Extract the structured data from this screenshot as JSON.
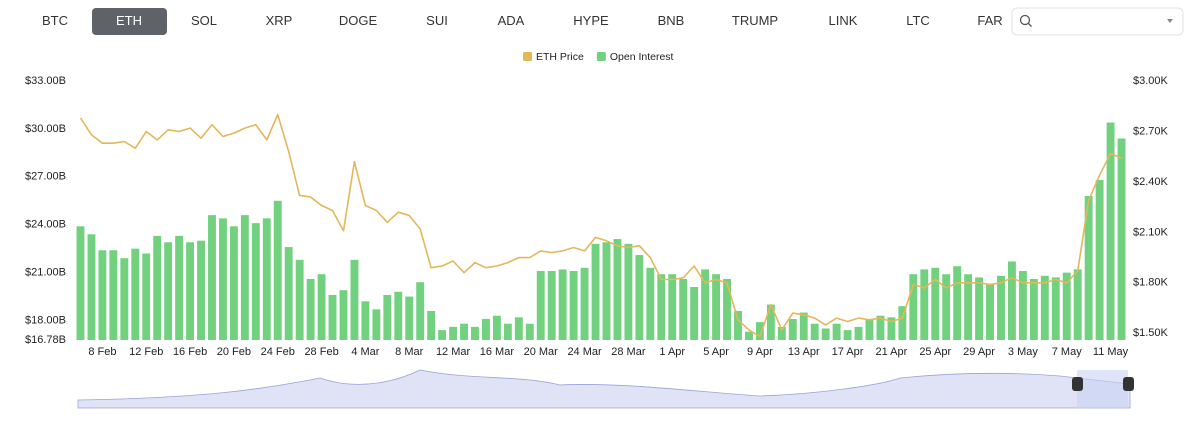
{
  "tabs": [
    "BTC",
    "ETH",
    "SOL",
    "XRP",
    "DOGE",
    "SUI",
    "ADA",
    "HYPE",
    "BNB",
    "TRUMP",
    "LINK",
    "LTC",
    "FAR"
  ],
  "selected_tab": 1,
  "chart_data": {
    "type": "combo",
    "categories": [
      null,
      null,
      "8 Feb",
      null,
      null,
      null,
      "12 Feb",
      null,
      null,
      null,
      "16 Feb",
      null,
      null,
      null,
      "20 Feb",
      null,
      null,
      null,
      "24 Feb",
      null,
      null,
      null,
      "28 Feb",
      null,
      null,
      null,
      "4 Mar",
      null,
      null,
      null,
      "8 Mar",
      null,
      null,
      null,
      "12 Mar",
      null,
      null,
      null,
      "16 Mar",
      null,
      null,
      null,
      "20 Mar",
      null,
      null,
      null,
      "24 Mar",
      null,
      null,
      null,
      "28 Mar",
      null,
      null,
      null,
      "1 Apr",
      null,
      null,
      null,
      "5 Apr",
      null,
      null,
      null,
      "9 Apr",
      null,
      null,
      null,
      "13 Apr",
      null,
      null,
      null,
      "17 Apr",
      null,
      null,
      null,
      "21 Apr",
      null,
      null,
      null,
      "25 Apr",
      null,
      null,
      null,
      "29 Apr",
      null,
      null,
      null,
      "3 May",
      null,
      null,
      null,
      "7 May",
      null,
      null,
      null,
      "11 May",
      null
    ],
    "series": [
      {
        "name": "ETH Price",
        "type": "line",
        "axis": "y2",
        "color": "#e3b75a",
        "values": [
          2.78,
          2.68,
          2.63,
          2.63,
          2.64,
          2.6,
          2.7,
          2.65,
          2.71,
          2.7,
          2.72,
          2.66,
          2.74,
          2.67,
          2.69,
          2.72,
          2.74,
          2.65,
          2.8,
          2.58,
          2.32,
          2.31,
          2.26,
          2.23,
          2.11,
          2.52,
          2.26,
          2.23,
          2.16,
          2.22,
          2.2,
          2.12,
          1.89,
          1.9,
          1.93,
          1.86,
          1.92,
          1.89,
          1.9,
          1.92,
          1.95,
          1.95,
          1.99,
          1.98,
          1.99,
          2.01,
          1.99,
          2.07,
          2.05,
          2.02,
          2.01,
          2.02,
          1.95,
          1.82,
          1.82,
          1.83,
          1.9,
          1.8,
          1.82,
          1.8,
          1.58,
          1.52,
          1.48,
          1.67,
          1.52,
          1.62,
          1.61,
          1.59,
          1.55,
          1.59,
          1.57,
          1.59,
          1.58,
          1.59,
          1.57,
          1.59,
          1.79,
          1.77,
          1.82,
          1.77,
          1.8,
          1.8,
          1.8,
          1.79,
          1.8,
          1.83,
          1.8,
          1.8,
          1.8,
          1.82,
          1.8,
          1.87,
          2.29,
          2.44,
          2.57,
          2.54
        ]
      },
      {
        "name": "Open Interest",
        "type": "bar",
        "color": "#72d17f",
        "values": [
          23.9,
          23.4,
          22.4,
          22.4,
          21.9,
          22.5,
          22.2,
          23.3,
          22.9,
          23.3,
          22.9,
          23.0,
          24.6,
          24.4,
          23.9,
          24.6,
          24.1,
          24.4,
          25.5,
          22.6,
          21.8,
          20.6,
          20.9,
          19.6,
          19.9,
          21.8,
          19.2,
          18.7,
          19.6,
          19.8,
          19.5,
          20.4,
          18.6,
          17.4,
          17.6,
          17.8,
          17.6,
          18.1,
          18.3,
          17.8,
          18.2,
          17.8,
          21.1,
          21.1,
          21.2,
          21.1,
          21.3,
          22.8,
          22.9,
          23.1,
          22.8,
          22.1,
          21.3,
          20.9,
          20.9,
          20.6,
          20.1,
          21.2,
          20.9,
          20.6,
          18.6,
          17.3,
          17.9,
          19.0,
          17.6,
          18.1,
          18.5,
          17.8,
          17.5,
          17.8,
          17.4,
          17.6,
          18.1,
          18.3,
          18.2,
          18.9,
          20.9,
          21.2,
          21.3,
          20.9,
          21.4,
          20.9,
          20.7,
          20.3,
          20.8,
          21.7,
          21.1,
          20.6,
          20.8,
          20.7,
          21.0,
          21.2,
          25.8,
          26.8,
          30.4,
          29.4
        ]
      }
    ],
    "ylim": [
      16.78,
      33.0
    ],
    "yticks": [
      {
        "value": 16.78,
        "label": "$16.78B"
      },
      {
        "value": 18,
        "label": "$18.00B"
      },
      {
        "value": 21,
        "label": "$21.00B"
      },
      {
        "value": 24,
        "label": "$24.00B"
      },
      {
        "value": 27,
        "label": "$27.00B"
      },
      {
        "value": 30,
        "label": "$30.00B"
      },
      {
        "value": 33,
        "label": "$33.00B"
      }
    ],
    "y2lim": [
      1.46,
      3.0
    ],
    "y2ticks": [
      {
        "value": 1.5,
        "label": "$1.50K"
      },
      {
        "value": 1.8,
        "label": "$1.80K"
      },
      {
        "value": 2.1,
        "label": "$2.10K"
      },
      {
        "value": 2.4,
        "label": "$2.40K"
      },
      {
        "value": 2.7,
        "label": "$2.70K"
      },
      {
        "value": 3.0,
        "label": "$3.00K"
      }
    ],
    "legend": "top"
  }
}
